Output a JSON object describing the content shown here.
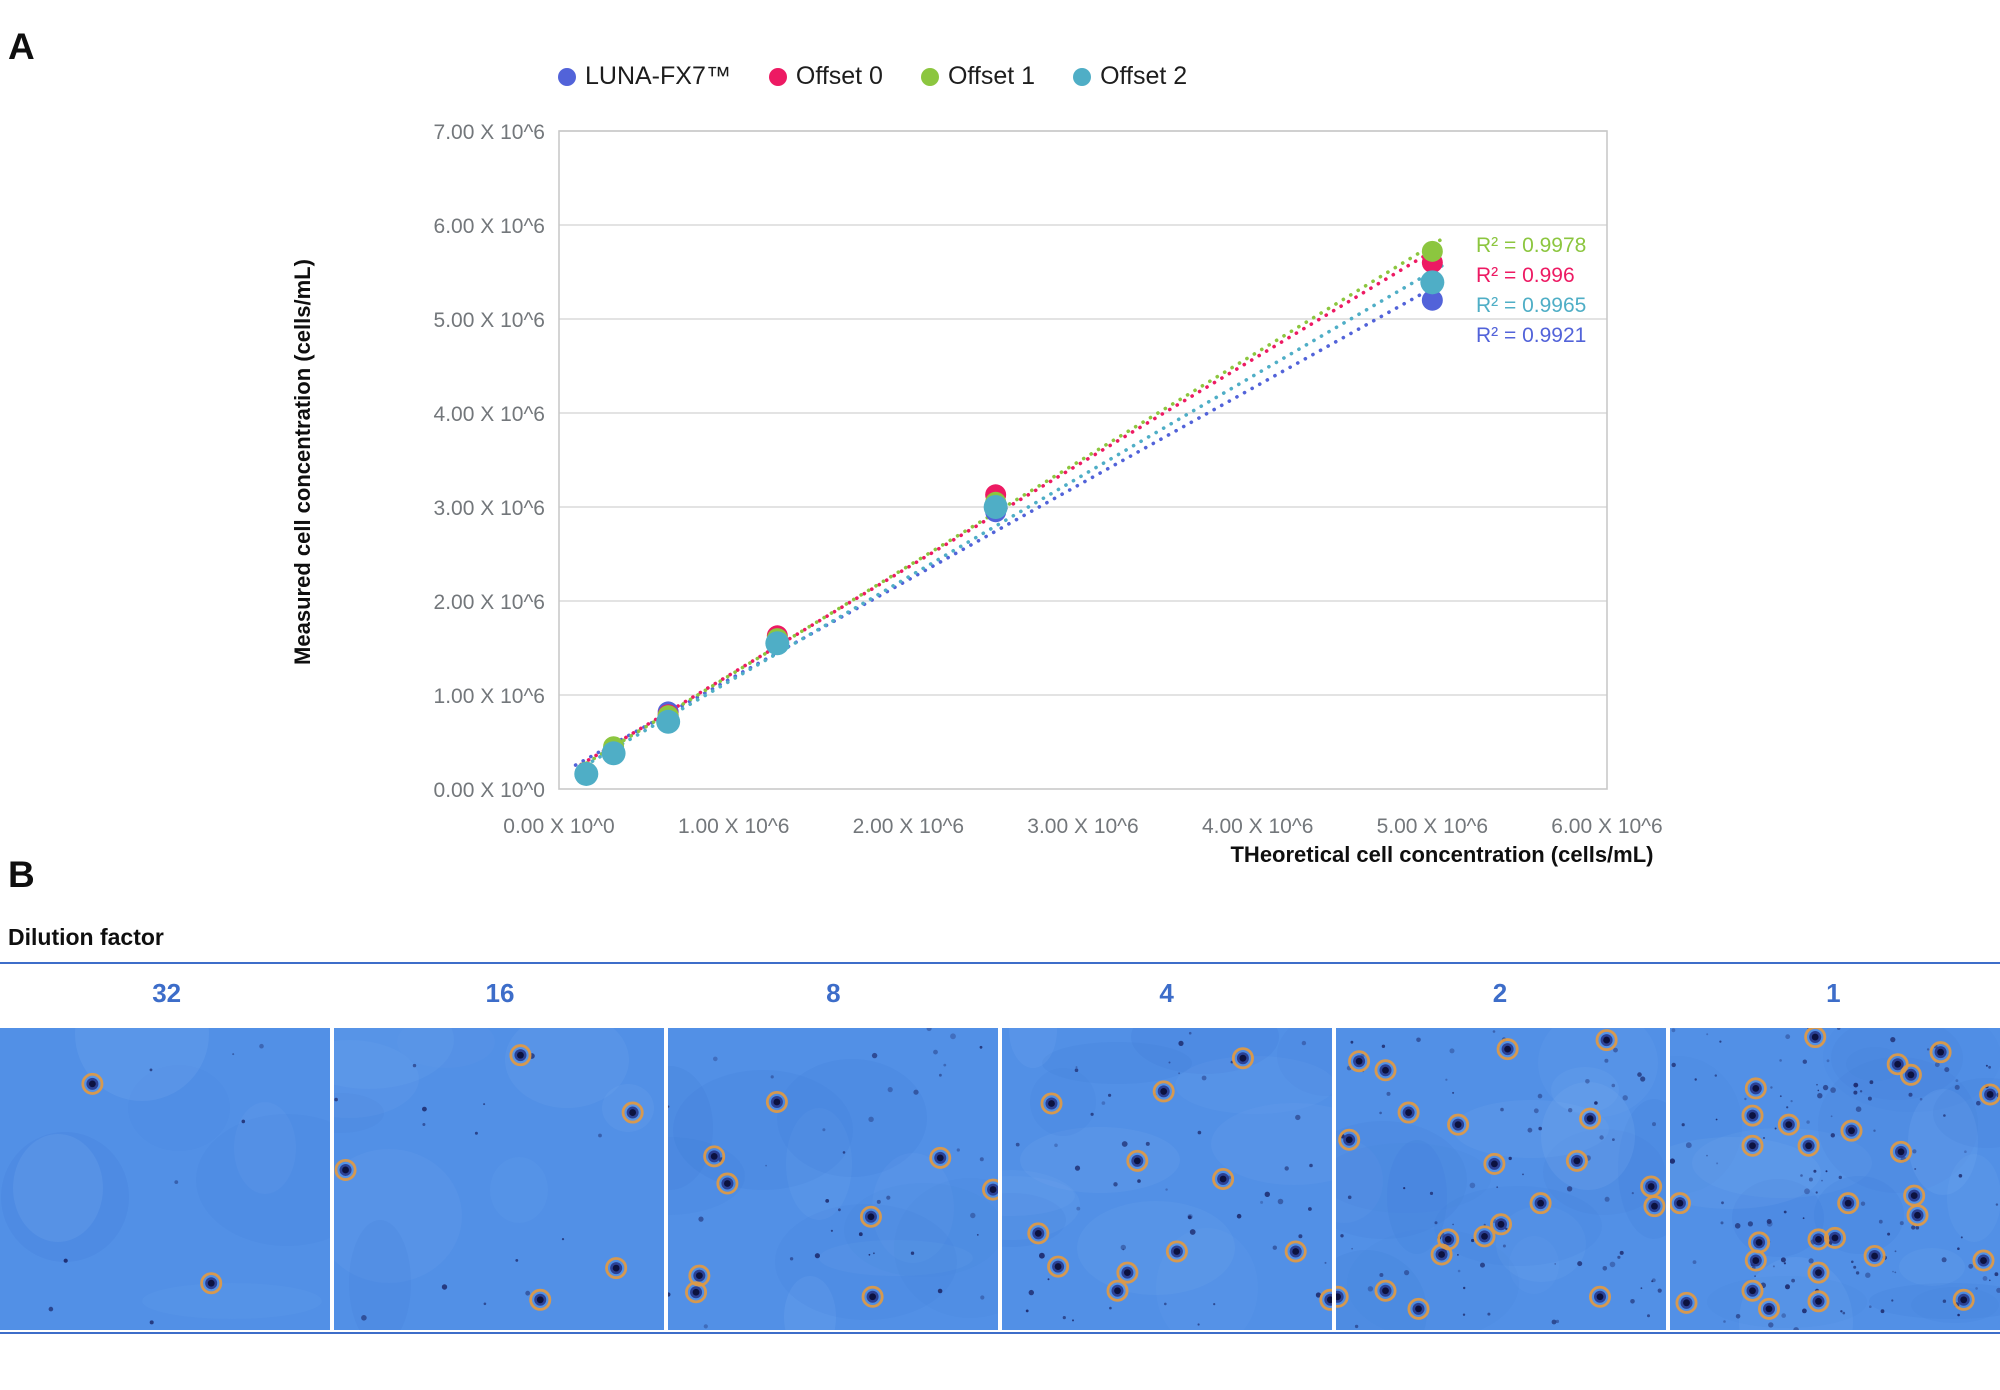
{
  "panel_a": {
    "label": "A",
    "legend": [
      {
        "name": "LUNA-FX7™",
        "color": "#5263D9"
      },
      {
        "name": "Offset 0",
        "color": "#ED1A63"
      },
      {
        "name": "Offset 1",
        "color": "#8CC63F"
      },
      {
        "name": "Offset 2",
        "color": "#4FAEC6"
      }
    ],
    "y_axis_title": "Measured cell concentration (cells/mL)",
    "x_axis_title": "THeoretical cell concentration (cells/mL)",
    "r2_annotations": [
      {
        "text": "R² = 0.9978",
        "series": "Offset 1",
        "color": "#8CC63F"
      },
      {
        "text": "R² = 0.996",
        "series": "Offset 0",
        "color": "#ED1A63"
      },
      {
        "text": "R² = 0.9965",
        "series": "Offset 2",
        "color": "#4FAEC6"
      },
      {
        "text": "R² = 0.9921",
        "series": "LUNA-FX7™",
        "color": "#5263D9"
      }
    ]
  },
  "chart_data": {
    "type": "scatter",
    "x": [
      156250,
      312500,
      625000,
      1250000,
      2500000,
      5000000
    ],
    "series": [
      {
        "name": "LUNA-FX7™",
        "color": "#5263D9",
        "values": [
          170000,
          400000,
          820000,
          1580000,
          2950000,
          5200000
        ],
        "r2": 0.9921,
        "trendline": "dotted"
      },
      {
        "name": "Offset 0",
        "color": "#ED1A63",
        "values": [
          175000,
          420000,
          790000,
          1630000,
          3130000,
          5600000
        ],
        "r2": 0.996,
        "trendline": "dotted"
      },
      {
        "name": "Offset 1",
        "color": "#8CC63F",
        "values": [
          180000,
          450000,
          780000,
          1600000,
          3050000,
          5720000
        ],
        "r2": 0.9978,
        "trendline": "dotted"
      },
      {
        "name": "Offset 2",
        "color": "#4FAEC6",
        "values": [
          160000,
          380000,
          715000,
          1550000,
          3000000,
          5390000
        ],
        "r2": 0.9965,
        "trendline": "dotted"
      }
    ],
    "xlabel": "THeoretical cell concentration (cells/mL)",
    "ylabel": "Measured cell concentration (cells/mL)",
    "xlim": [
      0,
      6000000
    ],
    "ylim": [
      0,
      7000000
    ],
    "x_ticks": [
      0,
      1000000,
      2000000,
      3000000,
      4000000,
      5000000,
      6000000
    ],
    "y_ticks": [
      0,
      1000000,
      2000000,
      3000000,
      4000000,
      5000000,
      6000000,
      7000000
    ],
    "x_tick_labels": [
      "0.00 X 10^0",
      "1.00 X 10^6",
      "2.00 X 10^6",
      "3.00 X 10^6",
      "4.00 X 10^6",
      "5.00 X 10^6",
      "6.00 X 10^6"
    ],
    "y_tick_labels": [
      "0.00 X 10^0",
      "1.00 X 10^6",
      "2.00 X 10^6",
      "3.00 X 10^6",
      "4.00 X 10^6",
      "5.00 X 10^6",
      "6.00 X 10^6",
      "7.00 X 10^6"
    ],
    "grid": "horizontal",
    "legend_position": "top"
  },
  "panel_b": {
    "label": "B",
    "title": "Dilution factor",
    "accent_color": "#3D6DC9",
    "colors": {
      "field": "#5290E6",
      "speck": "#1D2B6E",
      "ring": "#E09A44",
      "cell_core": "#0C1240",
      "cell_body": "#27398C"
    },
    "panels": [
      {
        "dilution": "32",
        "circled_cell_count": 2,
        "speck_count": 8,
        "cells": [
          [
            0.28,
            0.185
          ],
          [
            0.64,
            0.845
          ]
        ]
      },
      {
        "dilution": "16",
        "circled_cell_count": 5,
        "speck_count": 14,
        "cells": [
          [
            0.565,
            0.09
          ],
          [
            0.905,
            0.28
          ],
          [
            0.035,
            0.47
          ],
          [
            0.855,
            0.795
          ],
          [
            0.625,
            0.9
          ]
        ]
      },
      {
        "dilution": "8",
        "circled_cell_count": 9,
        "speck_count": 38,
        "cells": [
          [
            0.33,
            0.245
          ],
          [
            0.14,
            0.425
          ],
          [
            0.18,
            0.515
          ],
          [
            0.825,
            0.43
          ],
          [
            0.985,
            0.535
          ],
          [
            0.615,
            0.625
          ],
          [
            0.095,
            0.82
          ],
          [
            0.085,
            0.875
          ],
          [
            0.62,
            0.89
          ]
        ]
      },
      {
        "dilution": "4",
        "circled_cell_count": 12,
        "speck_count": 52,
        "cells": [
          [
            0.73,
            0.1
          ],
          [
            0.49,
            0.21
          ],
          [
            0.15,
            0.25
          ],
          [
            0.41,
            0.44
          ],
          [
            0.67,
            0.5
          ],
          [
            0.11,
            0.68
          ],
          [
            0.17,
            0.79
          ],
          [
            0.38,
            0.81
          ],
          [
            0.35,
            0.87
          ],
          [
            0.53,
            0.74
          ],
          [
            0.89,
            0.74
          ],
          [
            0.995,
            0.9
          ]
        ]
      },
      {
        "dilution": "2",
        "circled_cell_count": 21,
        "speck_count": 80,
        "cells": [
          [
            0.07,
            0.11
          ],
          [
            0.15,
            0.14
          ],
          [
            0.52,
            0.07
          ],
          [
            0.82,
            0.04
          ],
          [
            0.22,
            0.28
          ],
          [
            0.37,
            0.32
          ],
          [
            0.77,
            0.3
          ],
          [
            0.04,
            0.37
          ],
          [
            0.48,
            0.45
          ],
          [
            0.73,
            0.44
          ],
          [
            0.62,
            0.58
          ],
          [
            0.5,
            0.65
          ],
          [
            0.45,
            0.69
          ],
          [
            0.34,
            0.7
          ],
          [
            0.32,
            0.75
          ],
          [
            0.15,
            0.87
          ],
          [
            0.25,
            0.93
          ],
          [
            0.8,
            0.89
          ],
          [
            0.005,
            0.89
          ],
          [
            0.955,
            0.525
          ],
          [
            0.965,
            0.59
          ]
        ]
      },
      {
        "dilution": "1",
        "circled_cell_count": 28,
        "speck_count": 135,
        "cells": [
          [
            0.44,
            0.03
          ],
          [
            0.82,
            0.08
          ],
          [
            0.69,
            0.12
          ],
          [
            0.73,
            0.155
          ],
          [
            0.26,
            0.2
          ],
          [
            0.97,
            0.22
          ],
          [
            0.25,
            0.29
          ],
          [
            0.36,
            0.32
          ],
          [
            0.55,
            0.34
          ],
          [
            0.25,
            0.39
          ],
          [
            0.42,
            0.39
          ],
          [
            0.7,
            0.41
          ],
          [
            0.03,
            0.58
          ],
          [
            0.54,
            0.58
          ],
          [
            0.74,
            0.555
          ],
          [
            0.75,
            0.62
          ],
          [
            0.45,
            0.7
          ],
          [
            0.5,
            0.695
          ],
          [
            0.27,
            0.71
          ],
          [
            0.26,
            0.77
          ],
          [
            0.62,
            0.755
          ],
          [
            0.95,
            0.77
          ],
          [
            0.45,
            0.81
          ],
          [
            0.25,
            0.87
          ],
          [
            0.05,
            0.91
          ],
          [
            0.3,
            0.93
          ],
          [
            0.45,
            0.905
          ],
          [
            0.89,
            0.9
          ]
        ]
      }
    ]
  }
}
